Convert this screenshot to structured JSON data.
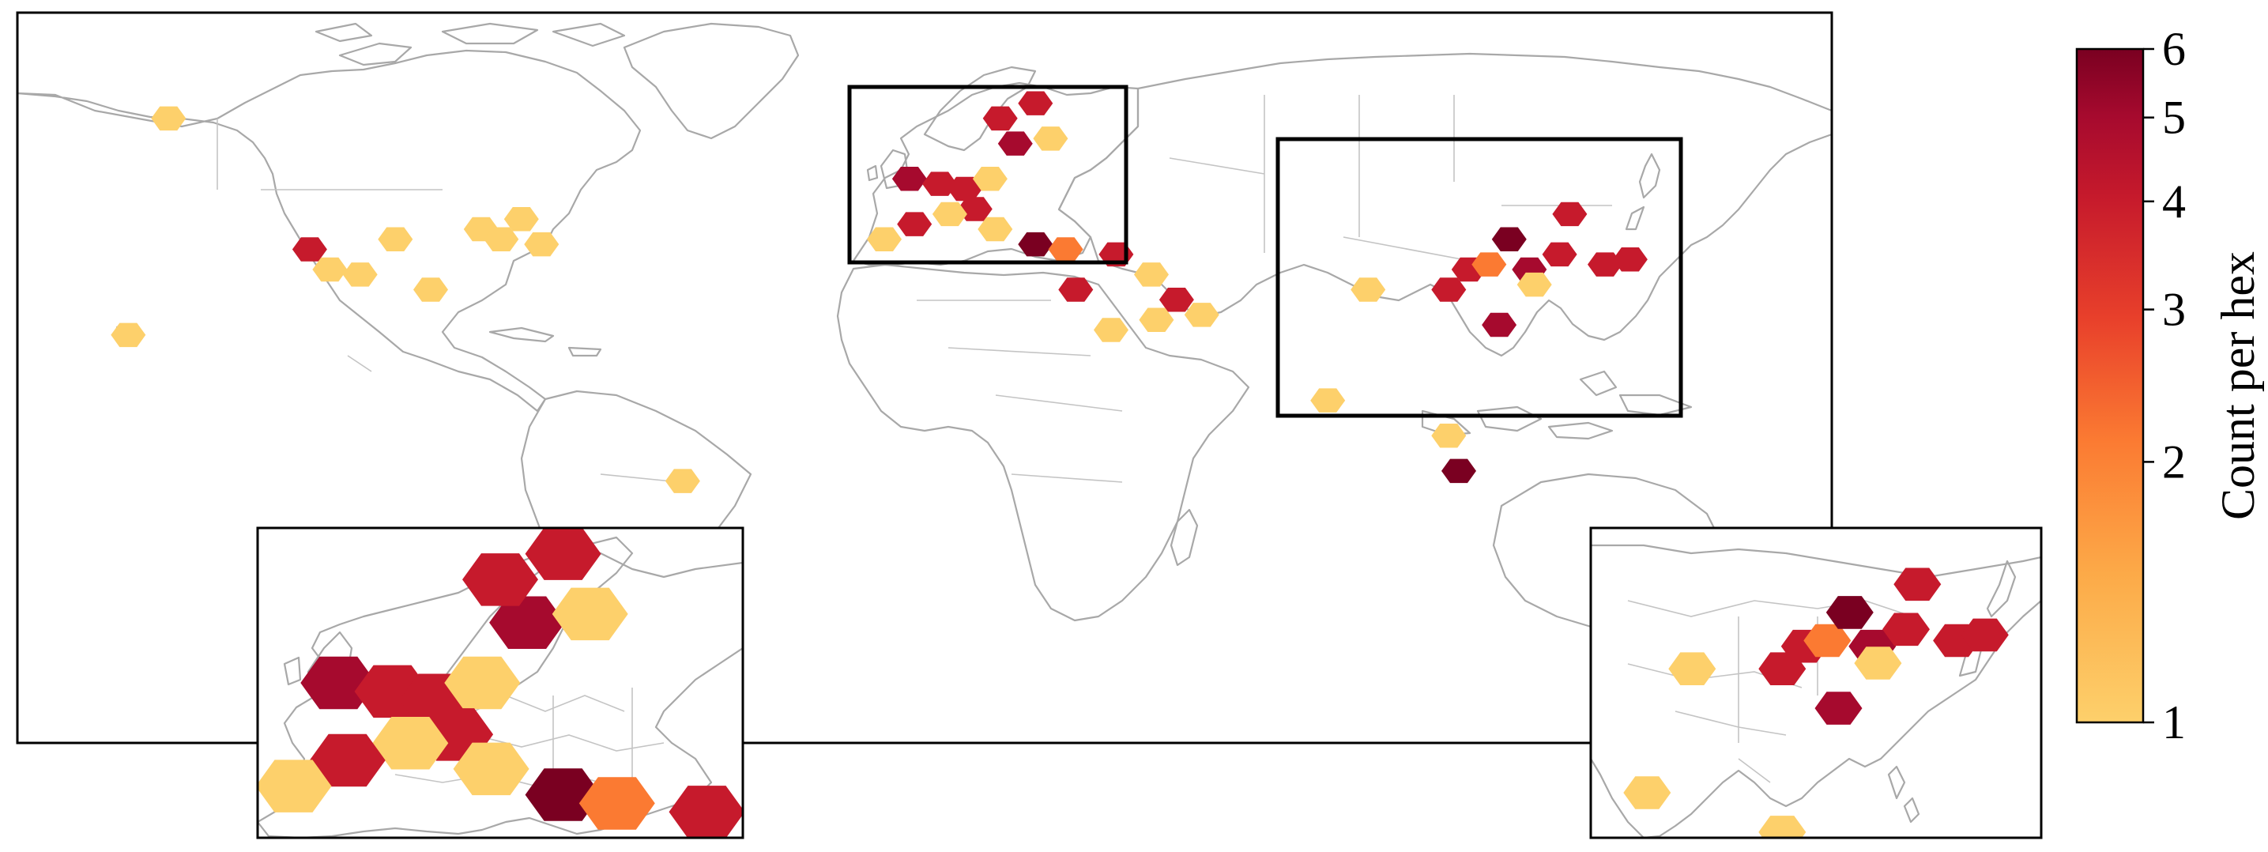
{
  "colorbar": {
    "label": "Count per hex",
    "scale": "log",
    "range": [
      1,
      6
    ],
    "ticks": [
      "1",
      "2",
      "3",
      "4",
      "5",
      "6"
    ],
    "colors": [
      "#fdd06b",
      "#fcaa48",
      "#fb7a32",
      "#e8402b",
      "#c61a2c",
      "#a60a2e",
      "#7a0021"
    ]
  },
  "map": {
    "type": "hexbin-world-map",
    "insets": [
      "europe",
      "east-asia"
    ]
  },
  "chart_data": {
    "type": "heatmap",
    "color_scale": "log",
    "value_range": [
      1,
      6
    ],
    "legend_label": "Count per hex",
    "hexes": [
      {
        "lon": -150,
        "lat": 64,
        "count": 1
      },
      {
        "lon": -122,
        "lat": 38,
        "count": 3
      },
      {
        "lon": -118,
        "lat": 34,
        "count": 1
      },
      {
        "lon": -112,
        "lat": 33,
        "count": 1
      },
      {
        "lon": -105,
        "lat": 40,
        "count": 1
      },
      {
        "lon": -98,
        "lat": 30,
        "count": 1
      },
      {
        "lon": -88,
        "lat": 42,
        "count": 1
      },
      {
        "lon": -84,
        "lat": 40,
        "count": 1
      },
      {
        "lon": -80,
        "lat": 44,
        "count": 1
      },
      {
        "lon": -76,
        "lat": 39,
        "count": 1
      },
      {
        "lon": -158,
        "lat": 21,
        "count": 1
      },
      {
        "lon": -48,
        "lat": -8,
        "count": 1
      },
      {
        "lon": -3,
        "lat": 52,
        "count": 4
      },
      {
        "lon": 3,
        "lat": 51,
        "count": 3
      },
      {
        "lon": 8,
        "lat": 50,
        "count": 3
      },
      {
        "lon": 13,
        "lat": 52,
        "count": 1
      },
      {
        "lon": 18,
        "lat": 59,
        "count": 4
      },
      {
        "lon": 25,
        "lat": 60,
        "count": 1
      },
      {
        "lon": 15,
        "lat": 64,
        "count": 3
      },
      {
        "lon": 22,
        "lat": 67,
        "count": 3
      },
      {
        "lon": 10,
        "lat": 46,
        "count": 3
      },
      {
        "lon": 5,
        "lat": 45,
        "count": 1
      },
      {
        "lon": -2,
        "lat": 43,
        "count": 3
      },
      {
        "lon": -8,
        "lat": 40,
        "count": 1
      },
      {
        "lon": 14,
        "lat": 42,
        "count": 1
      },
      {
        "lon": 22,
        "lat": 39,
        "count": 6
      },
      {
        "lon": 28,
        "lat": 38,
        "count": 2
      },
      {
        "lon": 38,
        "lat": 37,
        "count": 3
      },
      {
        "lon": 30,
        "lat": 30,
        "count": 3
      },
      {
        "lon": 45,
        "lat": 33,
        "count": 1
      },
      {
        "lon": 50,
        "lat": 28,
        "count": 3
      },
      {
        "lon": 46,
        "lat": 24,
        "count": 1
      },
      {
        "lon": 55,
        "lat": 25,
        "count": 1
      },
      {
        "lon": 37,
        "lat": 22,
        "count": 1
      },
      {
        "lon": 80,
        "lat": 8,
        "count": 1
      },
      {
        "lon": 88,
        "lat": 30,
        "count": 1
      },
      {
        "lon": 104,
        "lat": 30,
        "count": 3
      },
      {
        "lon": 108,
        "lat": 34,
        "count": 3
      },
      {
        "lon": 112,
        "lat": 35,
        "count": 2
      },
      {
        "lon": 116,
        "lat": 40,
        "count": 6
      },
      {
        "lon": 120,
        "lat": 34,
        "count": 5
      },
      {
        "lon": 114,
        "lat": 23,
        "count": 5
      },
      {
        "lon": 121,
        "lat": 31,
        "count": 1
      },
      {
        "lon": 126,
        "lat": 37,
        "count": 3
      },
      {
        "lon": 128,
        "lat": 45,
        "count": 3
      },
      {
        "lon": 135,
        "lat": 35,
        "count": 3
      },
      {
        "lon": 140,
        "lat": 36,
        "count": 3
      },
      {
        "lon": 104,
        "lat": 1,
        "count": 1
      },
      {
        "lon": 106,
        "lat": -6,
        "count": 6
      }
    ]
  }
}
